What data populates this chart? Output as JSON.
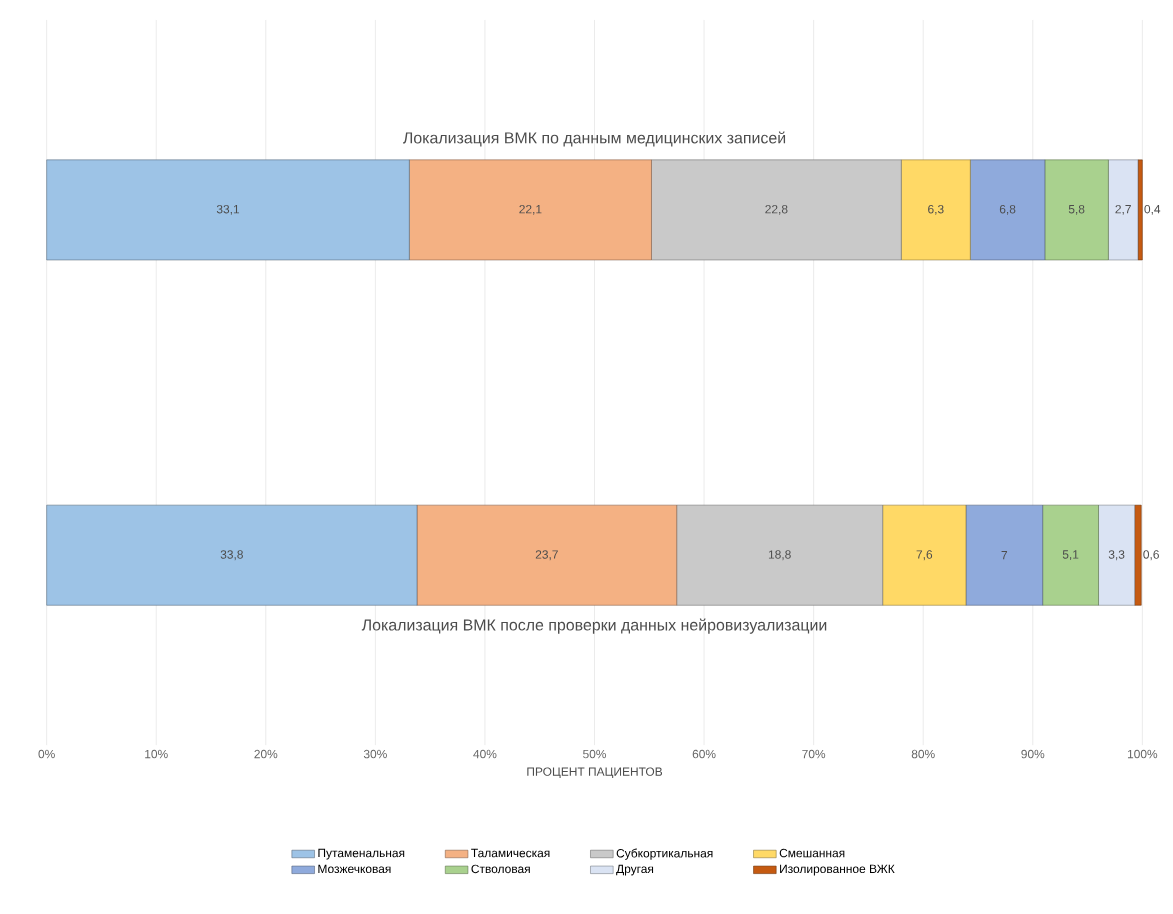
{
  "chart_data": {
    "type": "bar",
    "orientation": "horizontal",
    "stacked": true,
    "categories": [
      "Локализация ВМК по данным медицинских записей",
      "Локализация ВМК после проверки данных нейровизуализации"
    ],
    "xlabel": "ПРОЦЕНТ ПАЦИЕНТОВ",
    "xlim": [
      0,
      100
    ],
    "xticks": [
      {
        "value": 0,
        "label": "0%"
      },
      {
        "value": 10,
        "label": "10%"
      },
      {
        "value": 20,
        "label": "20%"
      },
      {
        "value": 30,
        "label": "30%"
      },
      {
        "value": 40,
        "label": "40%"
      },
      {
        "value": 50,
        "label": "50%"
      },
      {
        "value": 60,
        "label": "60%"
      },
      {
        "value": 70,
        "label": "70%"
      },
      {
        "value": 80,
        "label": "80%"
      },
      {
        "value": 90,
        "label": "90%"
      },
      {
        "value": 100,
        "label": "100%"
      }
    ],
    "grid": "x",
    "legend": "bottom",
    "series": [
      {
        "name": "Путаменальная",
        "color": "#9dc3e6",
        "values": [
          33.1,
          33.8
        ],
        "value_labels": [
          "33,1",
          "33,8"
        ]
      },
      {
        "name": "Таламическая",
        "color": "#f4b183",
        "values": [
          22.1,
          23.7
        ],
        "value_labels": [
          "22,1",
          "23,7"
        ]
      },
      {
        "name": "Субкортикальная",
        "color": "#c9c9c9",
        "values": [
          22.8,
          18.8
        ],
        "value_labels": [
          "22,8",
          "18,8"
        ]
      },
      {
        "name": "Смешанная",
        "color": "#ffd966",
        "values": [
          6.3,
          7.6
        ],
        "value_labels": [
          "6,3",
          "7,6"
        ]
      },
      {
        "name": "Мозжечковая",
        "color": "#8faadc",
        "values": [
          6.8,
          7
        ],
        "value_labels": [
          "6,8",
          "7"
        ]
      },
      {
        "name": "Стволовая",
        "color": "#a9d18e",
        "values": [
          5.8,
          5.1
        ],
        "value_labels": [
          "5,8",
          "5,1"
        ]
      },
      {
        "name": "Другая",
        "color": "#dae3f3",
        "values": [
          2.7,
          3.3
        ],
        "value_labels": [
          "2,7",
          "3,3"
        ]
      },
      {
        "name": "Изолированное ВЖК",
        "color": "#c55a11",
        "values": [
          0.4,
          0.6
        ],
        "value_labels": [
          "0,4",
          "0,6"
        ]
      }
    ]
  }
}
